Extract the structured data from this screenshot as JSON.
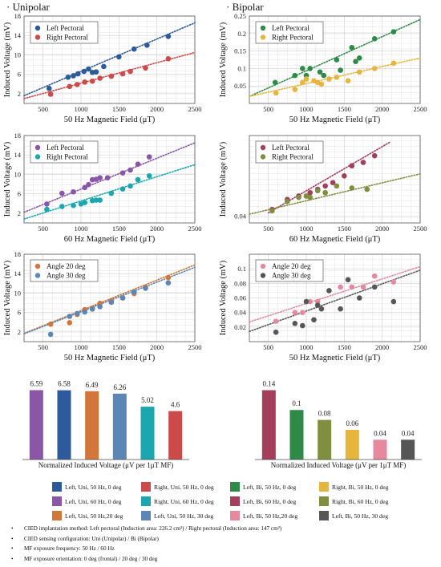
{
  "sections": {
    "unipolar": "· Unipolar",
    "bipolar": "· Bipolar"
  },
  "colors": {
    "uni_left_50": "#2c5a9a",
    "uni_right_50": "#cc4a4a",
    "uni_left_60": "#8b55a8",
    "uni_right_60": "#1aa7b0",
    "uni_angle20": "#d2773b",
    "uni_angle30": "#5b86b5",
    "bi_left_50": "#2e8a47",
    "bi_right_50": "#e6b53c",
    "bi_left_60": "#a33e5b",
    "bi_right_60": "#7f8f3f",
    "bi_angle20": "#e5899f",
    "bi_angle30": "#565656"
  },
  "chart_data": [
    {
      "type": "scatter",
      "panel": "uni-50hz",
      "xlabel": "50 Hz Magnetic Field (μT)",
      "ylabel": "Induced Voltage (mV)",
      "xlim": [
        250,
        2500
      ],
      "ylim": [
        0,
        18
      ],
      "xticks": [
        "500",
        "1000",
        "1500",
        "2000",
        "2500"
      ],
      "yticks": [
        "2",
        "6",
        "10",
        "14",
        "18"
      ],
      "grid": true,
      "legend": "top-left",
      "trendlines": "dotted",
      "series": [
        {
          "name": "Left Pectoral",
          "color_key": "uni_left_50",
          "x": [
            580,
            830,
            900,
            960,
            1040,
            1100,
            1150,
            1200,
            1300,
            1500,
            1700,
            1870,
            2150
          ],
          "y": [
            3.1,
            5.4,
            5.7,
            6.1,
            6.6,
            7.1,
            6.4,
            6.5,
            7.6,
            9.6,
            11.2,
            12.0,
            13.8
          ],
          "trend": [
            [
              250,
              1.6
            ],
            [
              2500,
              16.6
            ]
          ]
        },
        {
          "name": "Right Pectoral",
          "color_key": "uni_right_50",
          "x": [
            600,
            850,
            950,
            1050,
            1150,
            1250,
            1400,
            1550,
            1650,
            1850,
            2150
          ],
          "y": [
            1.9,
            3.5,
            3.9,
            4.4,
            4.6,
            5.2,
            5.6,
            6.1,
            6.6,
            7.3,
            9.2
          ],
          "trend": [
            [
              250,
              1.0
            ],
            [
              2500,
              10.5
            ]
          ]
        }
      ]
    },
    {
      "type": "scatter",
      "panel": "bi-50hz",
      "xlabel": "50 Hz Magnetic Field (μT)",
      "ylabel": "Induced Voltage (mV)",
      "xlim": [
        250,
        2500
      ],
      "ylim": [
        0,
        0.25
      ],
      "xticks": [
        "500",
        "1000",
        "1500",
        "2000",
        "2500"
      ],
      "yticks": [
        "0.05",
        "0.1",
        "0.15",
        "0.2",
        "0.25"
      ],
      "grid": true,
      "legend": "top-left",
      "trendlines": "dotted",
      "series": [
        {
          "name": "Left Pectoral",
          "color_key": "bi_left_50",
          "x": [
            590,
            850,
            950,
            1000,
            1050,
            1180,
            1230,
            1400,
            1450,
            1600,
            1650,
            1700,
            1900,
            2150
          ],
          "y": [
            0.06,
            0.08,
            0.1,
            0.08,
            0.1,
            0.09,
            0.08,
            0.125,
            0.095,
            0.16,
            0.12,
            0.13,
            0.185,
            0.205
          ],
          "trend": [
            [
              250,
              0.02
            ],
            [
              2500,
              0.24
            ]
          ]
        },
        {
          "name": "Right Pectoral",
          "color_key": "bi_right_50",
          "x": [
            600,
            850,
            950,
            1000,
            1100,
            1150,
            1200,
            1300,
            1400,
            1550,
            1700,
            1900,
            2150
          ],
          "y": [
            0.03,
            0.04,
            0.06,
            0.07,
            0.065,
            0.06,
            0.055,
            0.07,
            0.075,
            0.065,
            0.09,
            0.1,
            0.115
          ],
          "trend": [
            [
              250,
              0.02
            ],
            [
              2500,
              0.13
            ]
          ]
        }
      ]
    },
    {
      "type": "scatter",
      "panel": "uni-60hz",
      "xlabel": "60 Hz Magnetic Field (μT)",
      "ylabel": "Induced Voltage (mV)",
      "xlim": [
        250,
        2500
      ],
      "ylim": [
        0,
        18
      ],
      "xticks": [
        "500",
        "1000",
        "1500",
        "2000",
        "2500"
      ],
      "yticks": [
        "2",
        "6",
        "10",
        "14",
        "18"
      ],
      "grid": true,
      "legend": "top-left",
      "trendlines": "dotted",
      "series": [
        {
          "name": "Left Pectoral",
          "color_key": "uni_left_60",
          "x": [
            550,
            750,
            900,
            1050,
            1100,
            1150,
            1200,
            1250,
            1350,
            1550,
            1650,
            1750,
            1900
          ],
          "y": [
            3.9,
            6.1,
            6.4,
            7.3,
            7.9,
            8.9,
            9.0,
            9.3,
            9.3,
            10.3,
            10.9,
            12.1,
            13.6
          ],
          "trend": [
            [
              250,
              2.2
            ],
            [
              2500,
              16.5
            ]
          ]
        },
        {
          "name": "Right Pectoral",
          "color_key": "uni_right_60",
          "x": [
            550,
            750,
            900,
            1000,
            1050,
            1150,
            1200,
            1250,
            1400,
            1550,
            1650,
            1750,
            1900
          ],
          "y": [
            2.8,
            3.4,
            3.6,
            3.9,
            4.2,
            4.6,
            4.7,
            4.7,
            6.1,
            7.0,
            7.6,
            8.9,
            9.7
          ],
          "trend": [
            [
              250,
              0.8
            ],
            [
              2500,
              12.0
            ]
          ]
        }
      ]
    },
    {
      "type": "scatter",
      "panel": "bi-60hz",
      "xlabel": "60 Hz Magnetic Field (μT)",
      "ylabel": "Induced Voltage (mV)",
      "xlim": [
        250,
        2500
      ],
      "ylim": [
        0.03,
        0.16
      ],
      "xticks": [
        "500",
        "1000",
        "1500",
        "2000",
        "2500"
      ],
      "yticks": [
        "0.04"
      ],
      "grid": true,
      "legend": "top-left",
      "trendlines": "dotted",
      "series": [
        {
          "name": "Left Pectoral",
          "color_key": "bi_left_60",
          "x": [
            550,
            750,
            900,
            1000,
            1050,
            1150,
            1250,
            1350,
            1500,
            1600,
            1750,
            1900
          ],
          "y": [
            0.05,
            0.065,
            0.07,
            0.07,
            0.075,
            0.08,
            0.085,
            0.09,
            0.1,
            0.115,
            0.12,
            0.13
          ],
          "trend": [
            [
              500,
              0.045
            ],
            [
              2100,
              0.15
            ]
          ]
        },
        {
          "name": "Right Pectoral",
          "color_key": "bi_right_60",
          "x": [
            550,
            750,
            900,
            1000,
            1050,
            1150,
            1250,
            1400,
            1600,
            1800
          ],
          "y": [
            0.048,
            0.062,
            0.068,
            0.07,
            0.068,
            0.078,
            0.075,
            0.085,
            0.082,
            0.08
          ],
          "trend": [
            [
              250,
              0.043
            ],
            [
              2500,
              0.103
            ]
          ]
        }
      ]
    },
    {
      "type": "scatter",
      "panel": "uni-angle",
      "xlabel": "50 Hz Magnetic Field (μT)",
      "ylabel": "Induced Voltage (mV)",
      "xlim": [
        250,
        2500
      ],
      "ylim": [
        0,
        18
      ],
      "xticks": [
        "500",
        "1000",
        "1500",
        "2000",
        "2500"
      ],
      "yticks": [
        "2",
        "6",
        "10",
        "14",
        "18"
      ],
      "grid": true,
      "legend": "top-left",
      "trendlines": "dotted",
      "series": [
        {
          "name": "Angle 20 deg",
          "color_key": "uni_angle20",
          "x": [
            600,
            850,
            950,
            1050,
            1150,
            1250,
            1400,
            1550,
            1700,
            1850,
            2150
          ],
          "y": [
            3.6,
            3.9,
            5.6,
            6.6,
            6.9,
            7.9,
            8.4,
            9.0,
            9.9,
            11.2,
            13.2
          ],
          "trend": [
            [
              250,
              1.7
            ],
            [
              2500,
              15.8
            ]
          ]
        },
        {
          "name": "Angle 30 deg",
          "color_key": "uni_angle30",
          "x": [
            600,
            850,
            950,
            1050,
            1150,
            1250,
            1400,
            1550,
            1700,
            1850,
            2150
          ],
          "y": [
            1.5,
            5.2,
            5.8,
            6.1,
            6.7,
            7.2,
            8.1,
            9.0,
            10.2,
            11.0,
            12.1
          ],
          "trend": [
            [
              250,
              1.6
            ],
            [
              2500,
              15.3
            ]
          ]
        }
      ]
    },
    {
      "type": "scatter",
      "panel": "bi-angle",
      "xlabel": "50 Hz Magnetic Field (μT)",
      "ylabel": "Induced Voltage (mV)",
      "xlim": [
        250,
        2500
      ],
      "ylim": [
        0,
        0.12
      ],
      "xticks": [
        "500",
        "1000",
        "1500",
        "2000",
        "2500"
      ],
      "yticks": [
        "0.02",
        "0.04",
        "0.06",
        "0.08",
        "0.1"
      ],
      "grid": true,
      "legend": "top-left",
      "trendlines": "dotted",
      "series": [
        {
          "name": "Angle 20 deg",
          "color_key": "bi_angle20",
          "x": [
            600,
            850,
            950,
            1050,
            1150,
            1300,
            1450,
            1600,
            1750,
            1900,
            2150
          ],
          "y": [
            0.028,
            0.04,
            0.04,
            0.055,
            0.055,
            0.07,
            0.075,
            0.075,
            0.075,
            0.09,
            0.082
          ],
          "trend": [
            [
              250,
              0.027
            ],
            [
              2500,
              0.103
            ]
          ]
        },
        {
          "name": "Angle 30 deg",
          "color_key": "bi_angle30",
          "x": [
            600,
            850,
            950,
            1000,
            1100,
            1150,
            1200,
            1300,
            1450,
            1550,
            1700,
            1900,
            2150
          ],
          "y": [
            0.013,
            0.025,
            0.022,
            0.055,
            0.03,
            0.05,
            0.045,
            0.07,
            0.045,
            0.085,
            0.06,
            0.075,
            0.055
          ],
          "trend": [
            [
              250,
              0.014
            ],
            [
              2500,
              0.098
            ]
          ]
        }
      ]
    },
    {
      "type": "bar",
      "panel": "uni-bars",
      "xlabel": "Normalized Induced Voltage (μV per 1μT MF)",
      "values": [
        6.59,
        6.58,
        6.49,
        6.26,
        5.02,
        4.6
      ],
      "labels": [
        "6.59",
        "6.58",
        "6.49",
        "6.26",
        "5.02",
        "4.6"
      ],
      "color_keys": [
        "uni_left_60",
        "uni_left_50",
        "uni_angle20",
        "uni_angle30",
        "uni_right_60",
        "uni_right_50"
      ],
      "ylim": [
        0,
        8
      ]
    },
    {
      "type": "bar",
      "panel": "bi-bars",
      "xlabel": "Normalized Induced Voltage (μV per 1μT MF)",
      "values": [
        0.14,
        0.1,
        0.08,
        0.06,
        0.04,
        0.04
      ],
      "labels": [
        "0.14",
        "0.1",
        "0.08",
        "0.06",
        "0.04",
        "0.04"
      ],
      "color_keys": [
        "bi_left_60",
        "bi_left_50",
        "bi_right_60",
        "bi_right_50",
        "bi_angle20",
        "bi_angle30"
      ],
      "ylim": [
        0,
        0.17
      ]
    }
  ],
  "bottom_legend": [
    {
      "label": "Left, Uni, 50 Hz, 0 deg",
      "color_key": "uni_left_50"
    },
    {
      "label": "Right, Uni, 50 Hz, 0 deg",
      "color_key": "uni_right_50"
    },
    {
      "label": "Left, Bi, 50 Hz, 0 deg",
      "color_key": "bi_left_50"
    },
    {
      "label": "Right, Bi, 50 Hz, 0 deg",
      "color_key": "bi_right_50"
    },
    {
      "label": "Left, Uni, 60 Hz, 0 deg",
      "color_key": "uni_left_60"
    },
    {
      "label": "Right, Uni, 60 Hz, 0 deg",
      "color_key": "uni_right_60"
    },
    {
      "label": "Left, Bi, 60 Hz, 0 deg",
      "color_key": "bi_left_60"
    },
    {
      "label": "Right, Bi, 60 Hz, 0 deg",
      "color_key": "bi_right_60"
    },
    {
      "label": "Left, Uni, 50 Hz,20 deg",
      "color_key": "uni_angle20"
    },
    {
      "label": "Left, Uni, 50 Hz, 30 deg",
      "color_key": "uni_angle30"
    },
    {
      "label": "Left, Bi, 50 Hz,20 deg",
      "color_key": "bi_angle20"
    },
    {
      "label": "Left, Bi, 50 Hz, 30 deg",
      "color_key": "bi_angle30"
    }
  ],
  "notes": {
    "bullet": "•",
    "items": [
      "CIED implantation method: Left pectoral (Induction area: 226.2 cm²) / Right pectoral (Induction area: 147 cm²)",
      "CIED sensing configuration: Uni (Unipolar) / Bi (Bipolar)",
      "MF exposure frequency: 50 Hz / 60 Hz",
      "MF exposure orientation: 0 deg (frontal) / 20 deg / 30 deg"
    ]
  }
}
